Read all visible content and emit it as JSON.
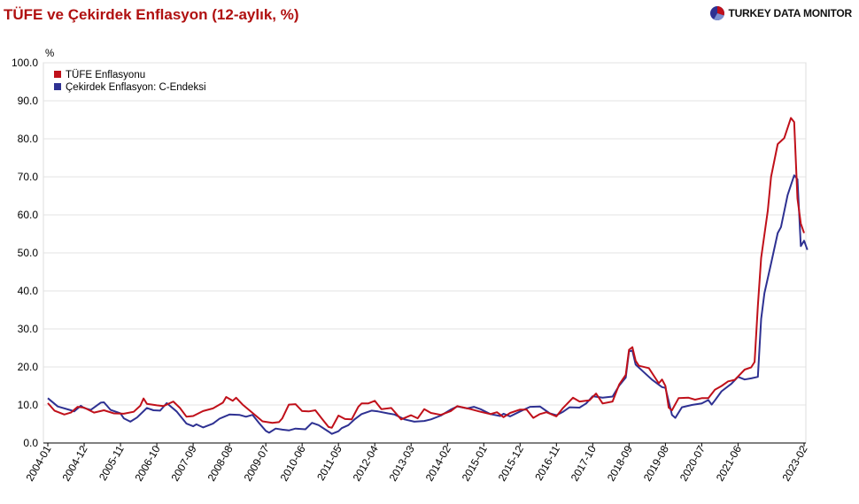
{
  "title": "TÜFE ve Çekirdek Enflasyon (12-aylık, %)",
  "brand": {
    "name": "TURKEY DATA MONITOR",
    "icon": "pie-logo-icon"
  },
  "chart_data": {
    "type": "line",
    "ylabel": "%",
    "ylim": [
      0,
      100
    ],
    "yticks": [
      "0.0",
      "10.0",
      "20.0",
      "30.0",
      "40.0",
      "50.0",
      "60.0",
      "70.0",
      "80.0",
      "90.0",
      "100.0"
    ],
    "xticks": [
      "2004-01",
      "2004-12",
      "2005-11",
      "2006-10",
      "2007-09",
      "2008-08",
      "2009-07",
      "2010-06",
      "2011-05",
      "2012-04",
      "2013-03",
      "2014-02",
      "2015-01",
      "2015-12",
      "2016-11",
      "2017-10",
      "2018-09",
      "2019-08",
      "2020-07",
      "2021-06",
      "2023-02"
    ],
    "xlim": [
      "2004-01",
      "2023-02"
    ],
    "grid": true,
    "legend_position": "top-left",
    "series": [
      {
        "name": "TÜFE Enflasyonu",
        "color": "#c0101a",
        "points": [
          [
            "2004-01",
            10.5
          ],
          [
            "2004-03",
            8.5
          ],
          [
            "2004-06",
            7.5
          ],
          [
            "2004-08",
            8.0
          ],
          [
            "2004-10",
            9.5
          ],
          [
            "2004-12",
            9.3
          ],
          [
            "2005-03",
            8.0
          ],
          [
            "2005-06",
            8.6
          ],
          [
            "2005-09",
            7.8
          ],
          [
            "2005-12",
            7.7
          ],
          [
            "2006-03",
            8.2
          ],
          [
            "2006-05",
            9.8
          ],
          [
            "2006-06",
            11.7
          ],
          [
            "2006-07",
            10.3
          ],
          [
            "2006-10",
            9.9
          ],
          [
            "2006-12",
            9.7
          ],
          [
            "2007-03",
            10.9
          ],
          [
            "2007-05",
            9.2
          ],
          [
            "2007-07",
            6.9
          ],
          [
            "2007-09",
            7.1
          ],
          [
            "2007-12",
            8.4
          ],
          [
            "2008-03",
            9.1
          ],
          [
            "2008-06",
            10.6
          ],
          [
            "2008-07",
            12.1
          ],
          [
            "2008-09",
            11.1
          ],
          [
            "2008-10",
            11.9
          ],
          [
            "2008-12",
            10.1
          ],
          [
            "2009-03",
            7.9
          ],
          [
            "2009-06",
            5.7
          ],
          [
            "2009-09",
            5.3
          ],
          [
            "2009-11",
            5.5
          ],
          [
            "2009-12",
            6.5
          ],
          [
            "2010-02",
            10.1
          ],
          [
            "2010-04",
            10.2
          ],
          [
            "2010-06",
            8.4
          ],
          [
            "2010-08",
            8.3
          ],
          [
            "2010-10",
            8.6
          ],
          [
            "2010-12",
            6.4
          ],
          [
            "2011-02",
            4.2
          ],
          [
            "2011-03",
            4.0
          ],
          [
            "2011-05",
            7.2
          ],
          [
            "2011-07",
            6.3
          ],
          [
            "2011-09",
            6.2
          ],
          [
            "2011-11",
            9.5
          ],
          [
            "2011-12",
            10.4
          ],
          [
            "2012-02",
            10.4
          ],
          [
            "2012-04",
            11.1
          ],
          [
            "2012-06",
            8.9
          ],
          [
            "2012-09",
            9.2
          ],
          [
            "2012-12",
            6.2
          ],
          [
            "2013-03",
            7.3
          ],
          [
            "2013-05",
            6.5
          ],
          [
            "2013-07",
            8.9
          ],
          [
            "2013-09",
            7.9
          ],
          [
            "2013-12",
            7.4
          ],
          [
            "2014-03",
            8.4
          ],
          [
            "2014-05",
            9.7
          ],
          [
            "2014-07",
            9.3
          ],
          [
            "2014-09",
            8.9
          ],
          [
            "2014-12",
            8.2
          ],
          [
            "2015-03",
            7.6
          ],
          [
            "2015-05",
            8.1
          ],
          [
            "2015-07",
            6.8
          ],
          [
            "2015-09",
            7.9
          ],
          [
            "2015-12",
            8.8
          ],
          [
            "2016-02",
            8.8
          ],
          [
            "2016-04",
            6.6
          ],
          [
            "2016-06",
            7.6
          ],
          [
            "2016-08",
            8.1
          ],
          [
            "2016-11",
            7.0
          ],
          [
            "2017-01",
            9.2
          ],
          [
            "2017-04",
            11.9
          ],
          [
            "2017-06",
            10.9
          ],
          [
            "2017-09",
            11.2
          ],
          [
            "2017-11",
            13.0
          ],
          [
            "2018-01",
            10.4
          ],
          [
            "2018-04",
            10.9
          ],
          [
            "2018-06",
            15.4
          ],
          [
            "2018-08",
            17.9
          ],
          [
            "2018-09",
            24.5
          ],
          [
            "2018-10",
            25.2
          ],
          [
            "2018-11",
            21.6
          ],
          [
            "2018-12",
            20.3
          ],
          [
            "2019-03",
            19.7
          ],
          [
            "2019-06",
            15.7
          ],
          [
            "2019-07",
            16.7
          ],
          [
            "2019-08",
            15.0
          ],
          [
            "2019-09",
            9.3
          ],
          [
            "2019-10",
            8.6
          ],
          [
            "2019-12",
            11.8
          ],
          [
            "2020-03",
            11.9
          ],
          [
            "2020-05",
            11.4
          ],
          [
            "2020-07",
            11.8
          ],
          [
            "2020-09",
            11.8
          ],
          [
            "2020-11",
            14.0
          ],
          [
            "2021-01",
            15.0
          ],
          [
            "2021-03",
            16.2
          ],
          [
            "2021-05",
            16.6
          ],
          [
            "2021-06",
            17.5
          ],
          [
            "2021-08",
            19.3
          ],
          [
            "2021-10",
            19.9
          ],
          [
            "2021-11",
            21.3
          ],
          [
            "2021-12",
            36.1
          ],
          [
            "2022-01",
            48.7
          ],
          [
            "2022-03",
            61.1
          ],
          [
            "2022-04",
            70.0
          ],
          [
            "2022-06",
            78.6
          ],
          [
            "2022-08",
            80.2
          ],
          [
            "2022-10",
            85.5
          ],
          [
            "2022-11",
            84.4
          ],
          [
            "2022-12",
            64.3
          ],
          [
            "2023-01",
            57.7
          ],
          [
            "2023-02",
            55.2
          ]
        ]
      },
      {
        "name": "Çekirdek Enflasyon: C-Endeksi",
        "color": "#2e3192",
        "points": [
          [
            "2004-01",
            11.8
          ],
          [
            "2004-04",
            9.6
          ],
          [
            "2004-08",
            8.6
          ],
          [
            "2004-09",
            8.3
          ],
          [
            "2004-11",
            9.8
          ],
          [
            "2004-12",
            9.2
          ],
          [
            "2005-02",
            8.7
          ],
          [
            "2005-05",
            10.6
          ],
          [
            "2005-06",
            10.7
          ],
          [
            "2005-08",
            8.7
          ],
          [
            "2005-11",
            7.8
          ],
          [
            "2005-12",
            6.5
          ],
          [
            "2006-02",
            5.6
          ],
          [
            "2006-04",
            6.7
          ],
          [
            "2006-07",
            9.2
          ],
          [
            "2006-09",
            8.6
          ],
          [
            "2006-11",
            8.5
          ],
          [
            "2007-01",
            10.5
          ],
          [
            "2007-04",
            8.3
          ],
          [
            "2007-07",
            5.1
          ],
          [
            "2007-09",
            4.4
          ],
          [
            "2007-10",
            4.9
          ],
          [
            "2007-12",
            4.1
          ],
          [
            "2008-03",
            5.1
          ],
          [
            "2008-05",
            6.4
          ],
          [
            "2008-08",
            7.5
          ],
          [
            "2008-11",
            7.4
          ],
          [
            "2009-01",
            6.9
          ],
          [
            "2009-03",
            7.4
          ],
          [
            "2009-05",
            5.2
          ],
          [
            "2009-07",
            3.2
          ],
          [
            "2009-08",
            2.7
          ],
          [
            "2009-10",
            3.8
          ],
          [
            "2009-12",
            3.5
          ],
          [
            "2010-02",
            3.3
          ],
          [
            "2010-04",
            3.8
          ],
          [
            "2010-07",
            3.6
          ],
          [
            "2010-09",
            5.3
          ],
          [
            "2010-11",
            4.7
          ],
          [
            "2011-02",
            3.0
          ],
          [
            "2011-03",
            2.4
          ],
          [
            "2011-05",
            3.1
          ],
          [
            "2011-06",
            3.9
          ],
          [
            "2011-08",
            4.7
          ],
          [
            "2011-10",
            6.3
          ],
          [
            "2011-12",
            7.6
          ],
          [
            "2012-03",
            8.5
          ],
          [
            "2012-05",
            8.3
          ],
          [
            "2012-08",
            7.8
          ],
          [
            "2012-10",
            7.5
          ],
          [
            "2013-01",
            6.2
          ],
          [
            "2013-04",
            5.6
          ],
          [
            "2013-07",
            5.8
          ],
          [
            "2013-09",
            6.2
          ],
          [
            "2013-12",
            7.2
          ],
          [
            "2014-03",
            8.8
          ],
          [
            "2014-05",
            9.6
          ],
          [
            "2014-08",
            9.1
          ],
          [
            "2014-10",
            9.5
          ],
          [
            "2014-12",
            8.9
          ],
          [
            "2015-03",
            7.6
          ],
          [
            "2015-06",
            7.1
          ],
          [
            "2015-07",
            7.7
          ],
          [
            "2015-09",
            7.0
          ],
          [
            "2015-12",
            8.3
          ],
          [
            "2016-03",
            9.5
          ],
          [
            "2016-06",
            9.6
          ],
          [
            "2016-09",
            7.8
          ],
          [
            "2016-11",
            7.3
          ],
          [
            "2017-01",
            8.2
          ],
          [
            "2017-03",
            9.4
          ],
          [
            "2017-06",
            9.3
          ],
          [
            "2017-08",
            10.4
          ],
          [
            "2017-10",
            12.3
          ],
          [
            "2018-01",
            11.9
          ],
          [
            "2018-04",
            12.2
          ],
          [
            "2018-06",
            15.1
          ],
          [
            "2018-08",
            17.2
          ],
          [
            "2018-09",
            24.1
          ],
          [
            "2018-10",
            24.3
          ],
          [
            "2018-11",
            20.6
          ],
          [
            "2019-01",
            19.0
          ],
          [
            "2019-04",
            16.6
          ],
          [
            "2019-07",
            14.7
          ],
          [
            "2019-08",
            14.5
          ],
          [
            "2019-10",
            7.4
          ],
          [
            "2019-11",
            6.6
          ],
          [
            "2020-01",
            9.4
          ],
          [
            "2020-04",
            10.0
          ],
          [
            "2020-07",
            10.4
          ],
          [
            "2020-09",
            11.3
          ],
          [
            "2020-10",
            10.1
          ],
          [
            "2020-11",
            11.2
          ],
          [
            "2021-01",
            13.6
          ],
          [
            "2021-04",
            15.6
          ],
          [
            "2021-06",
            17.4
          ],
          [
            "2021-08",
            16.7
          ],
          [
            "2021-10",
            17.0
          ],
          [
            "2021-12",
            17.4
          ],
          [
            "2022-01",
            32.6
          ],
          [
            "2022-02",
            39.4
          ],
          [
            "2022-04",
            47.2
          ],
          [
            "2022-06",
            55.2
          ],
          [
            "2022-07",
            56.8
          ],
          [
            "2022-09",
            65.2
          ],
          [
            "2022-11",
            70.4
          ],
          [
            "2022-12",
            69.4
          ],
          [
            "2023-01",
            51.8
          ],
          [
            "2023-02",
            53.2
          ],
          [
            "2023-03",
            50.8
          ]
        ]
      }
    ]
  }
}
